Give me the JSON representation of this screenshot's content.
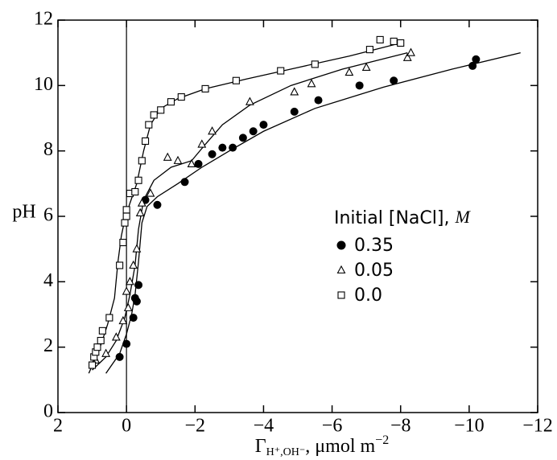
{
  "chart_data": {
    "type": "scatter",
    "y_label": "pH",
    "x_label": {
      "symbol": "Γ",
      "subscript": "H⁺,OH⁻",
      "text": ",  μmol m",
      "superscript": "−2"
    },
    "legend_title": {
      "text": "Initial [NaCl], ",
      "unit": "M"
    },
    "xlim": [
      2,
      -12
    ],
    "ylim": [
      0,
      12
    ],
    "xticks": [
      2,
      0,
      {
        "value": -2,
        "label": "−2"
      },
      {
        "value": -4,
        "label": "−4"
      },
      {
        "value": -6,
        "label": "−6"
      },
      {
        "value": -8,
        "label": "−8"
      },
      {
        "value": -10,
        "label": "−10"
      },
      {
        "value": -12,
        "label": "−12"
      }
    ],
    "yticks": [
      0,
      2,
      4,
      6,
      8,
      10,
      12
    ],
    "reference_x": 0,
    "series": [
      {
        "name": "0.35",
        "marker": "circle",
        "color": "#000000",
        "x": [
          0.2,
          0,
          -0.2,
          -0.25,
          -0.3,
          -0.35,
          -0.55,
          -0.9,
          -1.7,
          -2.1,
          -2.5,
          -2.8,
          -3.1,
          -3.4,
          -3.7,
          -4.0,
          -4.9,
          -5.6,
          -6.8,
          -7.8,
          -10.1,
          -10.2
        ],
        "values": [
          1.7,
          2.1,
          2.9,
          3.5,
          3.4,
          3.9,
          6.5,
          6.35,
          7.05,
          7.6,
          7.9,
          8.1,
          8.1,
          8.4,
          8.6,
          8.8,
          9.2,
          9.55,
          10.0,
          10.15,
          10.6,
          10.8
        ],
        "curve": {
          "x": [
            0.6,
            0.2,
            0,
            -0.15,
            -0.25,
            -0.35,
            -0.45,
            -0.6,
            -0.9,
            -1.5,
            -2.2,
            -3.0,
            -4.0,
            -5.5,
            -7.5,
            -9.5,
            -11.5
          ],
          "y": [
            1.2,
            1.8,
            2.4,
            3.0,
            3.6,
            4.6,
            5.8,
            6.3,
            6.6,
            7.0,
            7.5,
            8.0,
            8.6,
            9.3,
            9.95,
            10.5,
            11.0
          ]
        }
      },
      {
        "name": "0.05",
        "marker": "triangle",
        "color": "#000000",
        "x": [
          0.9,
          0.6,
          0.3,
          0.1,
          -0.05,
          0,
          -0.1,
          -0.2,
          -0.3,
          -0.4,
          -0.45,
          -0.7,
          -1.2,
          -1.5,
          -1.9,
          -2.2,
          -2.5,
          -3.6,
          -4.9,
          -5.4,
          -6.5,
          -7.0,
          -8.2,
          -8.3
        ],
        "values": [
          1.6,
          1.8,
          2.3,
          2.8,
          3.2,
          3.7,
          4.0,
          4.5,
          5.0,
          6.1,
          6.4,
          6.7,
          7.8,
          7.7,
          7.6,
          8.2,
          8.6,
          9.5,
          9.8,
          10.05,
          10.4,
          10.55,
          10.85,
          11.0
        ],
        "curve": {
          "x": [
            1.0,
            0.6,
            0.3,
            0.05,
            -0.1,
            -0.25,
            -0.35,
            -0.5,
            -0.8,
            -1.3,
            -1.9,
            -2.3,
            -2.8,
            -3.6,
            -4.8,
            -6.3,
            -8.2
          ],
          "y": [
            1.3,
            1.7,
            2.2,
            2.9,
            3.6,
            4.5,
            5.6,
            6.5,
            7.1,
            7.5,
            7.7,
            8.2,
            8.8,
            9.4,
            10.0,
            10.5,
            11.0
          ]
        }
      },
      {
        "name": "0.0",
        "marker": "square",
        "color": "#000000",
        "x": [
          1.0,
          0.95,
          0.9,
          0.85,
          0.75,
          0.7,
          0.5,
          0.2,
          0.1,
          0.05,
          0,
          0,
          -0.1,
          -0.25,
          -0.35,
          -0.45,
          -0.55,
          -0.65,
          -0.8,
          -1.0,
          -1.3,
          -1.6,
          -2.3,
          -3.2,
          -4.5,
          -5.5,
          -7.1,
          -7.4,
          -7.8,
          -8.0
        ],
        "values": [
          1.45,
          1.7,
          1.85,
          2.0,
          2.2,
          2.5,
          2.9,
          4.5,
          5.2,
          5.8,
          6.0,
          6.2,
          6.7,
          6.75,
          7.1,
          7.7,
          8.3,
          8.8,
          9.1,
          9.25,
          9.5,
          9.65,
          9.9,
          10.15,
          10.45,
          10.65,
          11.1,
          11.4,
          11.35,
          11.3
        ],
        "curve": {
          "x": [
            1.1,
            0.8,
            0.55,
            0.35,
            0.25,
            0.15,
            0.05,
            -0.1,
            -0.3,
            -0.5,
            -0.7,
            -1.0,
            -1.5,
            -2.3,
            -3.5,
            -5.0,
            -6.5,
            -8.0
          ],
          "y": [
            1.2,
            1.9,
            2.7,
            3.5,
            4.6,
            5.4,
            5.9,
            6.4,
            7.0,
            8.0,
            8.8,
            9.3,
            9.6,
            9.9,
            10.2,
            10.55,
            10.9,
            11.3
          ]
        }
      }
    ]
  }
}
